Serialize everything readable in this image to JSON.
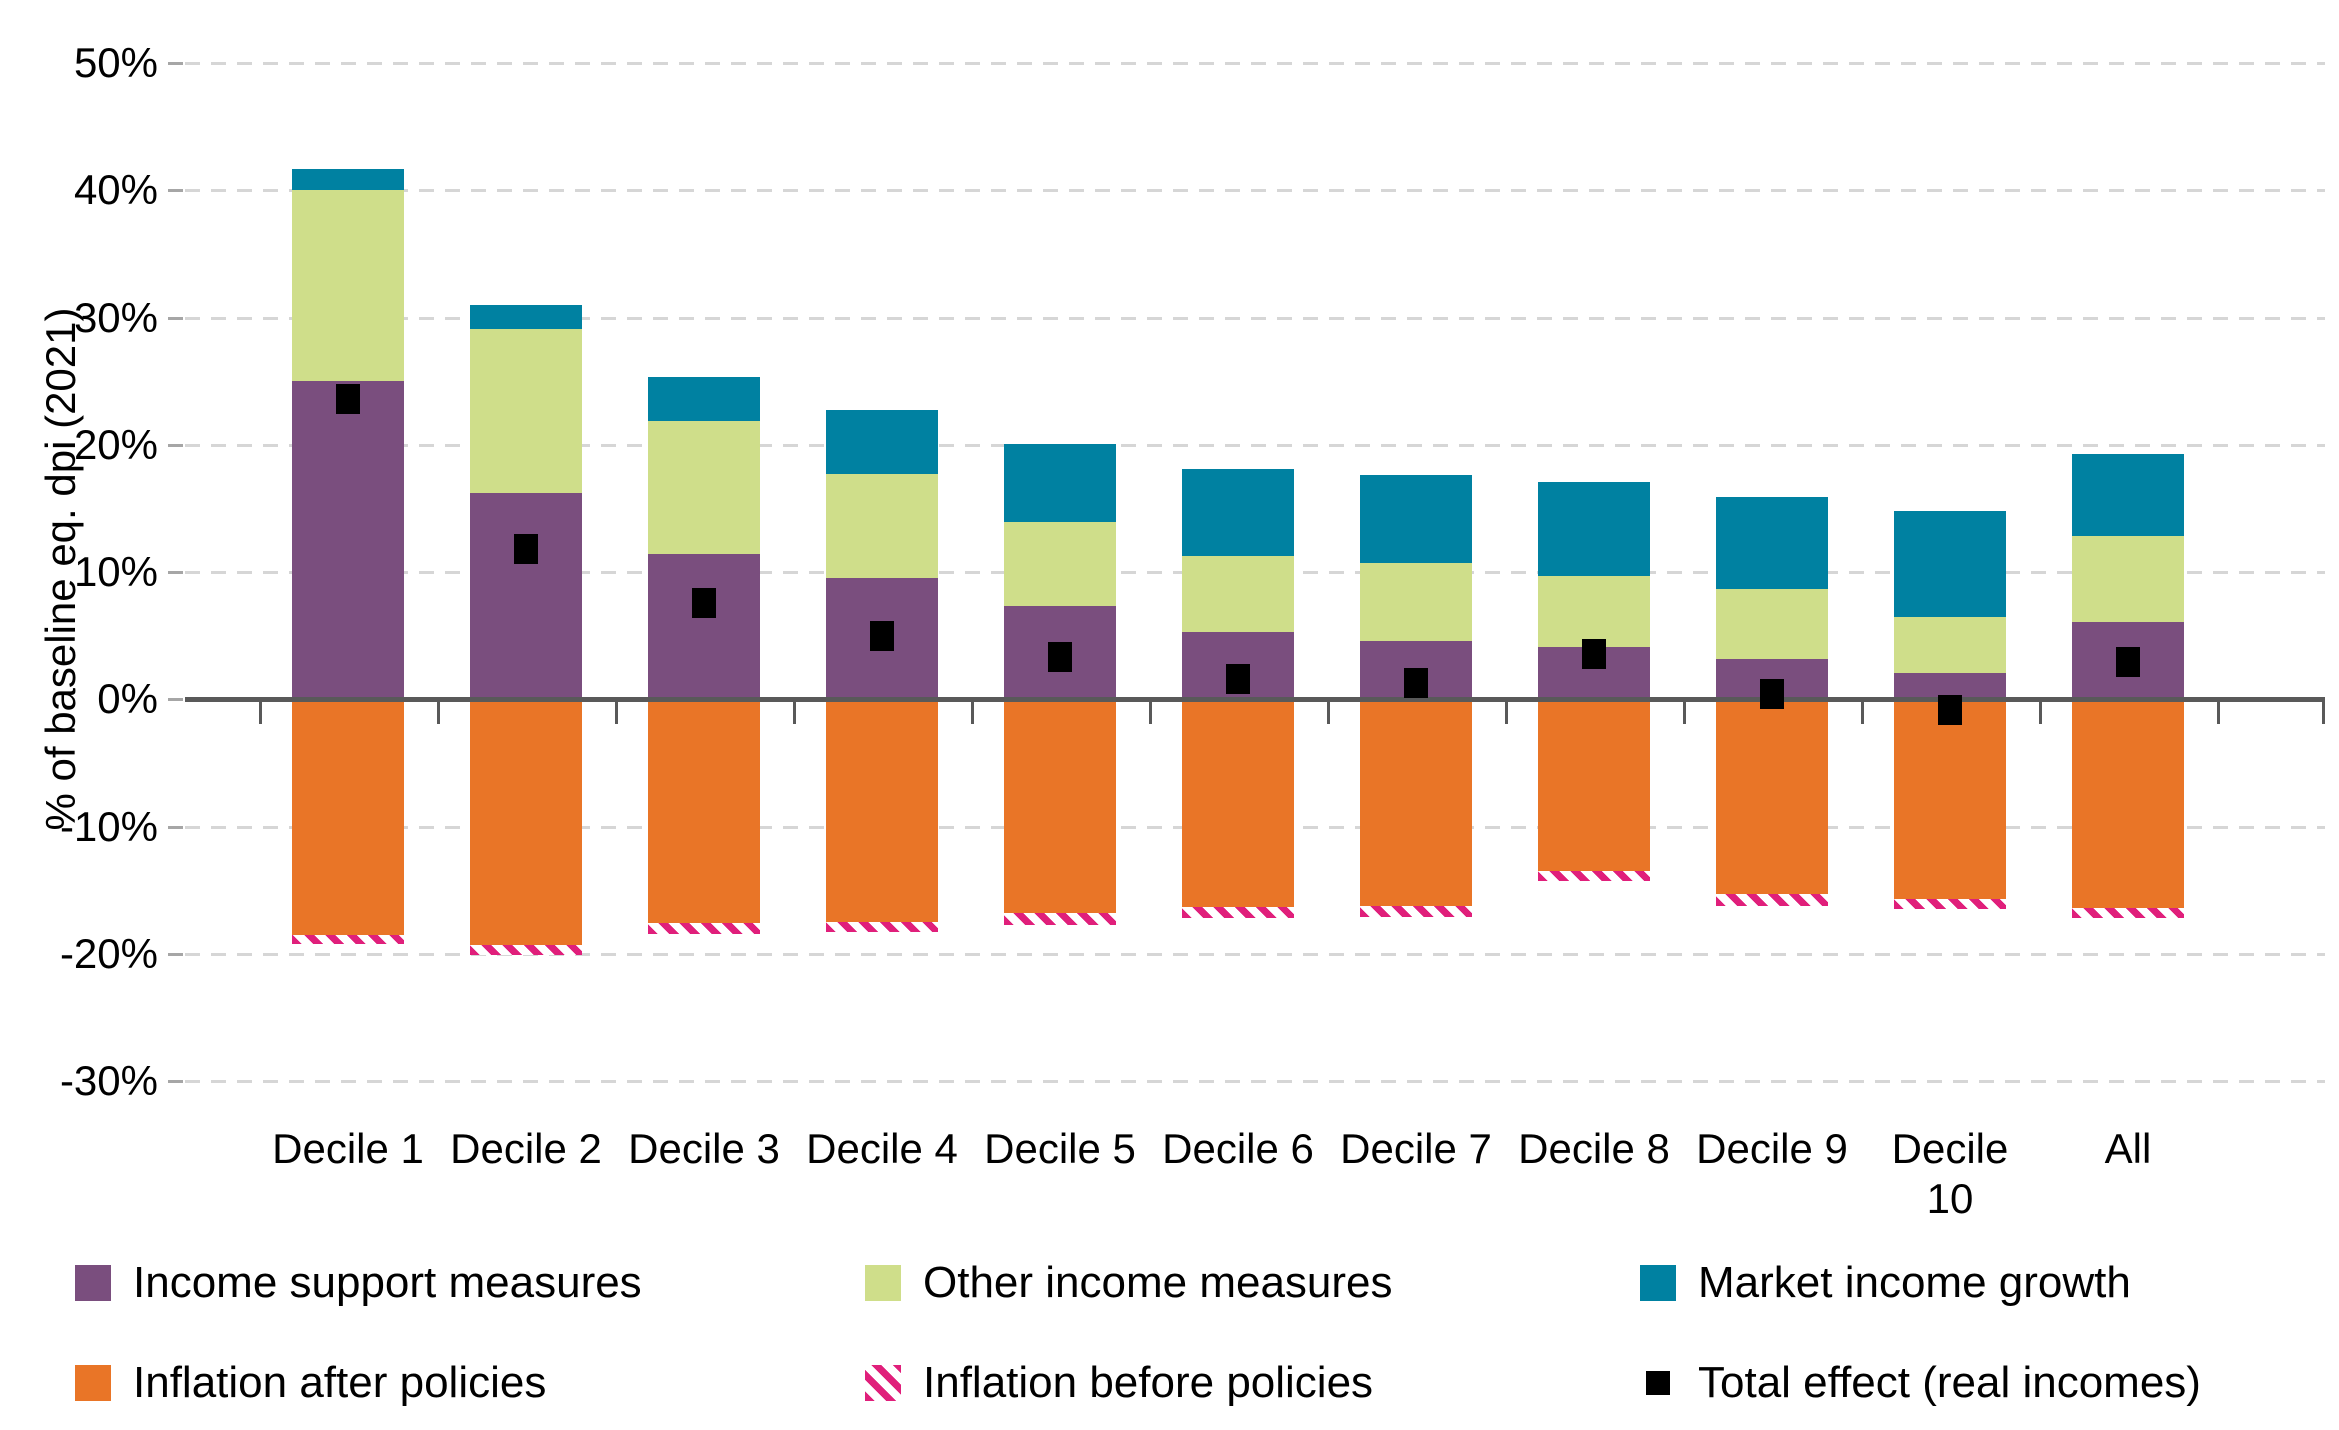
{
  "chart_data": {
    "type": "bar",
    "stacked": true,
    "title": "",
    "xlabel": "",
    "ylabel": "% of baseline eq. dpi (2021)",
    "ylim": [
      -30,
      50
    ],
    "ytick_step": 10,
    "yticks": [
      50,
      40,
      30,
      20,
      10,
      0,
      -10,
      -20,
      -30
    ],
    "ytick_labels": [
      "50%",
      "40%",
      "30%",
      "20%",
      "10%",
      "0%",
      "-10%",
      "-20%",
      "-30%"
    ],
    "grid": "horizontal-dashed",
    "legend_position": "bottom",
    "categories": [
      "Decile 1",
      "Decile 2",
      "Decile 3",
      "Decile 4",
      "Decile 5",
      "Decile 6",
      "Decile 7",
      "Decile 8",
      "Decile 9",
      "Decile 10",
      "All"
    ],
    "series": [
      {
        "name": "Income support measures",
        "role": "stack-positive",
        "color": "#7a4e7e",
        "values": [
          25.0,
          16.2,
          11.4,
          9.5,
          7.3,
          5.3,
          4.6,
          4.1,
          3.2,
          2.1,
          6.1
        ]
      },
      {
        "name": "Other income measures",
        "role": "stack-positive",
        "color": "#cfde8a",
        "values": [
          15.0,
          12.9,
          10.5,
          8.2,
          6.6,
          6.0,
          6.1,
          5.6,
          5.5,
          4.4,
          6.7
        ]
      },
      {
        "name": "Market income growth",
        "role": "stack-positive",
        "color": "#0081a1",
        "values": [
          1.7,
          1.9,
          3.4,
          5.0,
          6.2,
          6.8,
          6.9,
          7.4,
          7.2,
          8.3,
          6.5
        ]
      },
      {
        "name": "Inflation after policies",
        "role": "stack-negative",
        "color": "#e97527",
        "values": [
          -18.5,
          -19.3,
          -17.6,
          -17.5,
          -16.8,
          -16.3,
          -16.2,
          -13.5,
          -15.3,
          -15.7,
          -16.4
        ]
      },
      {
        "name": "Inflation before policies",
        "role": "hatched-negative",
        "color": "#e01f7b",
        "pattern": "diagonal-hatch",
        "values": [
          -19.2,
          -20.1,
          -18.4,
          -18.3,
          -17.7,
          -17.2,
          -17.1,
          -14.3,
          -16.2,
          -16.5,
          -17.2
        ]
      },
      {
        "name": "Total effect (real incomes)",
        "role": "point-marker",
        "color": "#000000",
        "marker": "square",
        "values": [
          23.6,
          11.8,
          7.6,
          5.0,
          3.3,
          1.6,
          1.3,
          3.6,
          0.4,
          -0.8,
          2.9
        ]
      }
    ],
    "legend_rows": [
      [
        0,
        1,
        2
      ],
      [
        3,
        4,
        5
      ]
    ]
  },
  "colors": {
    "background": "#ffffff",
    "axis_line": "#595959",
    "gridline": "#d6d6d6",
    "y_tickmark": "#a6a6a6",
    "text": "#000000",
    "income_support": "#7a4e7e",
    "other_income": "#cfde8a",
    "market_income_growth": "#0081a1",
    "inflation_after": "#e97527",
    "inflation_before": "#e01f7b",
    "total_effect": "#000000"
  }
}
